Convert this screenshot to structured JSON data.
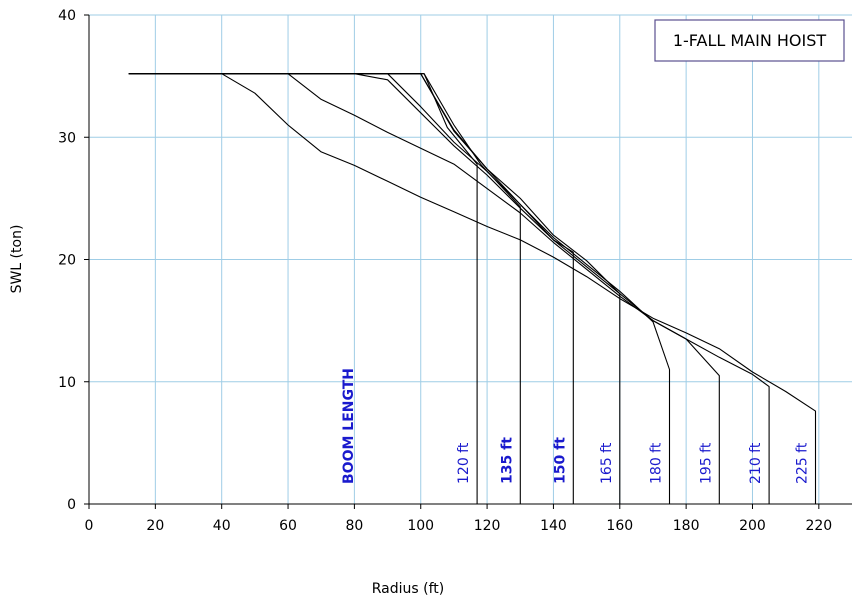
{
  "chart_data": {
    "type": "line",
    "title": "1-FALL MAIN HOIST",
    "xlabel": "Radius (ft)",
    "ylabel": "SWL (ton)",
    "xlim": [
      0,
      230
    ],
    "ylim": [
      0,
      40
    ],
    "x_ticks": [
      0,
      20,
      40,
      60,
      80,
      100,
      120,
      140,
      160,
      180,
      200,
      220
    ],
    "y_ticks": [
      0,
      10,
      20,
      30,
      40
    ],
    "grid": true,
    "colors": {
      "line": "#000000",
      "grid": "#9fcde6",
      "label": "#1a1acd",
      "legend_border": "#5a4f8f"
    },
    "annotation": "BOOM LENGTH",
    "series": [
      {
        "name": "120 ft",
        "x": [
          12,
          101,
          108,
          117,
          117
        ],
        "y": [
          35.2,
          35.2,
          30.8,
          27.8,
          0
        ]
      },
      {
        "name": "135 ft",
        "x": [
          12,
          101,
          110,
          118,
          130,
          130
        ],
        "y": [
          35.2,
          35.2,
          31.0,
          27.8,
          24.3,
          0
        ]
      },
      {
        "name": "150 ft",
        "x": [
          12,
          100,
          110,
          120,
          130,
          140,
          146,
          146
        ],
        "y": [
          35.2,
          35.2,
          30.5,
          27.4,
          24.5,
          21.6,
          20.6,
          0
        ]
      },
      {
        "name": "165 ft",
        "x": [
          12,
          100,
          110,
          120,
          130,
          140,
          150,
          160,
          160
        ],
        "y": [
          35.2,
          35.2,
          30.6,
          27.4,
          25.0,
          22.0,
          19.9,
          17.2,
          0
        ]
      },
      {
        "name": "180 ft",
        "x": [
          12,
          90,
          100,
          110,
          120,
          130,
          140,
          150,
          160,
          170,
          175,
          175
        ],
        "y": [
          35.2,
          35.2,
          32.5,
          29.6,
          27.2,
          24.5,
          21.8,
          19.6,
          17.4,
          14.9,
          11.0,
          0
        ]
      },
      {
        "name": "195 ft",
        "x": [
          12,
          80,
          90,
          100,
          110,
          120,
          130,
          140,
          150,
          160,
          170,
          180,
          190,
          190
        ],
        "y": [
          35.2,
          35.2,
          34.7,
          32.0,
          29.3,
          26.9,
          24.2,
          21.6,
          19.4,
          17.2,
          15.0,
          13.5,
          10.5,
          0
        ]
      },
      {
        "name": "210 ft",
        "x": [
          12,
          60,
          70,
          80,
          90,
          100,
          110,
          120,
          130,
          140,
          150,
          160,
          170,
          180,
          190,
          200,
          205,
          205
        ],
        "y": [
          35.2,
          35.2,
          33.1,
          31.8,
          30.4,
          29.1,
          27.8,
          25.8,
          23.8,
          21.4,
          19.2,
          17.0,
          15.0,
          13.5,
          12.0,
          10.6,
          9.6,
          0
        ]
      },
      {
        "name": "225 ft",
        "x": [
          12,
          40,
          50,
          60,
          70,
          80,
          90,
          100,
          110,
          120,
          130,
          140,
          150,
          160,
          170,
          180,
          190,
          200,
          210,
          219,
          219
        ],
        "y": [
          35.2,
          35.2,
          33.6,
          31.0,
          28.8,
          27.7,
          26.4,
          25.1,
          23.9,
          22.7,
          21.6,
          20.2,
          18.6,
          16.8,
          15.2,
          14.0,
          12.7,
          10.8,
          9.2,
          7.6,
          0
        ]
      }
    ],
    "boom_labels": [
      {
        "text": "120 ft",
        "x": 117,
        "bold": false
      },
      {
        "text": "135 ft",
        "x": 130,
        "bold": true
      },
      {
        "text": "150 ft",
        "x": 146,
        "bold": true
      },
      {
        "text": "165 ft",
        "x": 160,
        "bold": false
      },
      {
        "text": "180 ft",
        "x": 175,
        "bold": false
      },
      {
        "text": "195 ft",
        "x": 190,
        "bold": false
      },
      {
        "text": "210 ft",
        "x": 205,
        "bold": false
      },
      {
        "text": "225 ft",
        "x": 219,
        "bold": false
      }
    ]
  }
}
